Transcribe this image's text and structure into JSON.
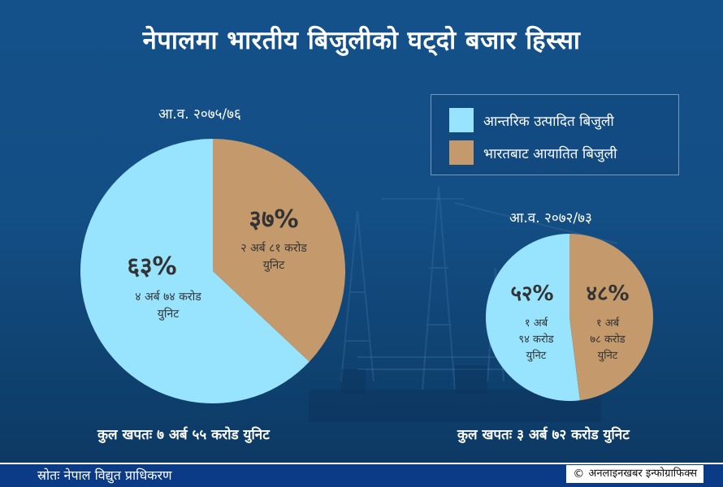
{
  "title": "नेपालमा भारतीय बिजुलीको घट्दो बजार हिस्सा",
  "legend": [
    {
      "label": "आन्तरिक उत्पादित बिजुली",
      "color": "#98e4ff"
    },
    {
      "label": "भारतबाट आयातित बिजुली",
      "color": "#c49a6c"
    }
  ],
  "colors": {
    "domestic": "#98e4ff",
    "imported": "#c49a6c",
    "slice_text": "#333333",
    "footer_bg": "#0b3a86"
  },
  "chart_data": [
    {
      "type": "pie",
      "title": "आ.व. २०७५/७६",
      "total_label": "कुल खपतः ७ अर्ब ५५ करोड युनिट",
      "slices": [
        {
          "name": "आन्तरिक उत्पादित बिजुली",
          "value": 63,
          "pct_label": "६३%",
          "detail": [
            "४ अर्ब ७४ करोड",
            "युनिट"
          ]
        },
        {
          "name": "भारतबाट आयातित बिजुली",
          "value": 37,
          "pct_label": "३७%",
          "detail": [
            "२ अर्ब ८१ करोड",
            "युनिट"
          ]
        }
      ]
    },
    {
      "type": "pie",
      "title": "आ.व. २०७२/७३",
      "total_label": "कुल खपतः ३ अर्ब ७२ करोड युनिट",
      "slices": [
        {
          "name": "आन्तरिक उत्पादित बिजुली",
          "value": 52,
          "pct_label": "५२%",
          "detail": [
            "१ अर्ब",
            "९४ करोड",
            "युनिट"
          ]
        },
        {
          "name": "भारतबाट आयातित बिजुली",
          "value": 48,
          "pct_label": "४८%",
          "detail": [
            "१ अर्ब",
            "७८ करोड",
            "युनिट"
          ]
        }
      ]
    }
  ],
  "footer": {
    "source": "स्रोतः नेपाल विद्युत प्राधिकरण",
    "credit_symbol": "©",
    "credit": "अनलाइनखबर इन्फोग्राफिक्स"
  }
}
